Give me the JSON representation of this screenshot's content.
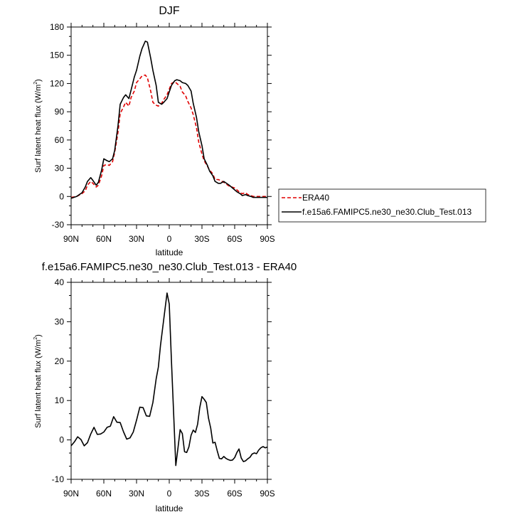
{
  "chart_data": [
    {
      "type": "line",
      "title": "DJF",
      "xlabel": "latitude",
      "ylabel": "Surf latent heat flux (W/m",
      "ylabel_sup": "2",
      "ylabel_close": ")",
      "xlim": [
        90,
        -90
      ],
      "ylim": [
        -30,
        180
      ],
      "xticks": [
        90,
        60,
        30,
        0,
        -30,
        -60,
        -90
      ],
      "xtick_labels": [
        "90N",
        "60N",
        "30N",
        "0",
        "30S",
        "60S",
        "90S"
      ],
      "yticks": [
        -30,
        0,
        30,
        60,
        90,
        120,
        150,
        180
      ],
      "ytick_labels": [
        "-30",
        "0",
        "30",
        "60",
        "90",
        "120",
        "150",
        "180"
      ],
      "legend": "right",
      "series": [
        {
          "name": "ERA40",
          "color": "#e00000",
          "dash": "dashed",
          "x": [
            90,
            85,
            80,
            77,
            75,
            72,
            70,
            67,
            65,
            62,
            60,
            57,
            55,
            52,
            50,
            47,
            45,
            42,
            40,
            37,
            35,
            32,
            30,
            27,
            25,
            22,
            20,
            17,
            15,
            12,
            10,
            7,
            5,
            2,
            0,
            -2,
            -5,
            -7,
            -10,
            -12,
            -15,
            -17,
            -20,
            -22,
            -25,
            -27,
            -30,
            -32,
            -35,
            -37,
            -40,
            -42,
            -45,
            -47,
            -50,
            -55,
            -60,
            -62,
            -65,
            -67,
            -70,
            -72,
            -75,
            -77,
            -80,
            -82,
            -85,
            -87,
            -90
          ],
          "y": [
            -1,
            0,
            3,
            6,
            12,
            16,
            14,
            10,
            12,
            22,
            33,
            34,
            33,
            37,
            47,
            68,
            88,
            95,
            100,
            96,
            105,
            112,
            121,
            125,
            128,
            129,
            126,
            112,
            100,
            97,
            96,
            99,
            103,
            108,
            114,
            120,
            122,
            120,
            117,
            111,
            107,
            101,
            94,
            87,
            73,
            58,
            45,
            38,
            32,
            28,
            24,
            18,
            18,
            17,
            15,
            11,
            9,
            7,
            4,
            3,
            4,
            2,
            1,
            0,
            0,
            0,
            0,
            0,
            0
          ]
        },
        {
          "name": "f.e15a6.FAMIPC5.ne30_ne30.Club_Test.013",
          "color": "#000000",
          "dash": "solid",
          "x": [
            90,
            85,
            80,
            77,
            75,
            72,
            70,
            67,
            65,
            62,
            60,
            57,
            55,
            52,
            50,
            47,
            45,
            42,
            40,
            37,
            35,
            32,
            30,
            27,
            25,
            22,
            20,
            17,
            15,
            12,
            10,
            7,
            5,
            2,
            0,
            -2,
            -5,
            -7,
            -10,
            -12,
            -15,
            -17,
            -20,
            -22,
            -25,
            -27,
            -30,
            -32,
            -35,
            -37,
            -40,
            -42,
            -45,
            -47,
            -50,
            -55,
            -60,
            -62,
            -65,
            -67,
            -70,
            -72,
            -75,
            -77,
            -80,
            -82,
            -85,
            -87,
            -90
          ],
          "y": [
            -2,
            0,
            4,
            10,
            16,
            20,
            17,
            12,
            15,
            28,
            40,
            38,
            37,
            40,
            49,
            75,
            98,
            105,
            108,
            104,
            113,
            127,
            134,
            149,
            157,
            165,
            164,
            147,
            134,
            118,
            100,
            98,
            100,
            104,
            111,
            118,
            123,
            124,
            123,
            121,
            120,
            118,
            112,
            99,
            84,
            69,
            54,
            40,
            33,
            27,
            22,
            16,
            14,
            14,
            16,
            12,
            7,
            5,
            3,
            1,
            2,
            1,
            0,
            -1,
            -1,
            -1,
            -1,
            -1,
            -1
          ]
        }
      ]
    },
    {
      "type": "line",
      "title": "f.e15a6.FAMIPC5.ne30_ne30.Club_Test.013 - ERA40",
      "xlabel": "latitude",
      "ylabel": "Surf latent heat flux (W/m",
      "ylabel_sup": "2",
      "ylabel_close": ")",
      "xlim": [
        90,
        -90
      ],
      "ylim": [
        -10,
        40
      ],
      "xticks": [
        90,
        60,
        30,
        0,
        -30,
        -60,
        -90
      ],
      "xtick_labels": [
        "90N",
        "60N",
        "30N",
        "0",
        "30S",
        "60S",
        "90S"
      ],
      "yticks": [
        -10,
        0,
        10,
        20,
        30,
        40
      ],
      "ytick_labels": [
        "-10",
        "0",
        "10",
        "20",
        "30",
        "40"
      ],
      "series": [
        {
          "name": "",
          "color": "#000000",
          "dash": "solid",
          "x": [
            90,
            87,
            84,
            81,
            78,
            75,
            72,
            69,
            66,
            63,
            60,
            57,
            54,
            51,
            48,
            45,
            42,
            39,
            36,
            33,
            30,
            27,
            24,
            21,
            18,
            15,
            12,
            10,
            8,
            6,
            4,
            2,
            0,
            -2,
            -4,
            -6,
            -8,
            -10,
            -12,
            -14,
            -16,
            -18,
            -20,
            -22,
            -24,
            -26,
            -28,
            -30,
            -32,
            -34,
            -36,
            -38,
            -40,
            -42,
            -44,
            -46,
            -48,
            -50,
            -52,
            -54,
            -56,
            -58,
            -60,
            -62,
            -64,
            -66,
            -68,
            -70,
            -72,
            -74,
            -76,
            -78,
            -80,
            -82,
            -84,
            -86,
            -88,
            -90
          ],
          "y": [
            -1.5,
            -0.5,
            0.8,
            0.1,
            -1.5,
            -0.7,
            1.5,
            3.2,
            1.4,
            1.5,
            2.0,
            3.2,
            3.5,
            5.9,
            4.5,
            4.4,
            2.1,
            0.2,
            0.5,
            2.0,
            5.0,
            8.3,
            8.2,
            6.1,
            6.0,
            9.5,
            15.5,
            18.5,
            24.0,
            28.5,
            33.0,
            37.3,
            34.5,
            20.0,
            7.0,
            -6.5,
            -2.0,
            2.6,
            1.6,
            -3.0,
            -3.2,
            -1.8,
            1.2,
            2.5,
            1.9,
            4.0,
            8.2,
            11.0,
            10.3,
            9.5,
            5.5,
            3.0,
            -0.8,
            -0.6,
            -2.8,
            -4.7,
            -4.8,
            -4.2,
            -4.7,
            -5.0,
            -5.2,
            -5.1,
            -4.5,
            -3.2,
            -2.3,
            -4.6,
            -5.5,
            -5.3,
            -4.8,
            -4.4,
            -3.6,
            -3.3,
            -3.5,
            -2.6,
            -2.0,
            -1.7,
            -2.0,
            -1.8
          ]
        }
      ]
    }
  ]
}
